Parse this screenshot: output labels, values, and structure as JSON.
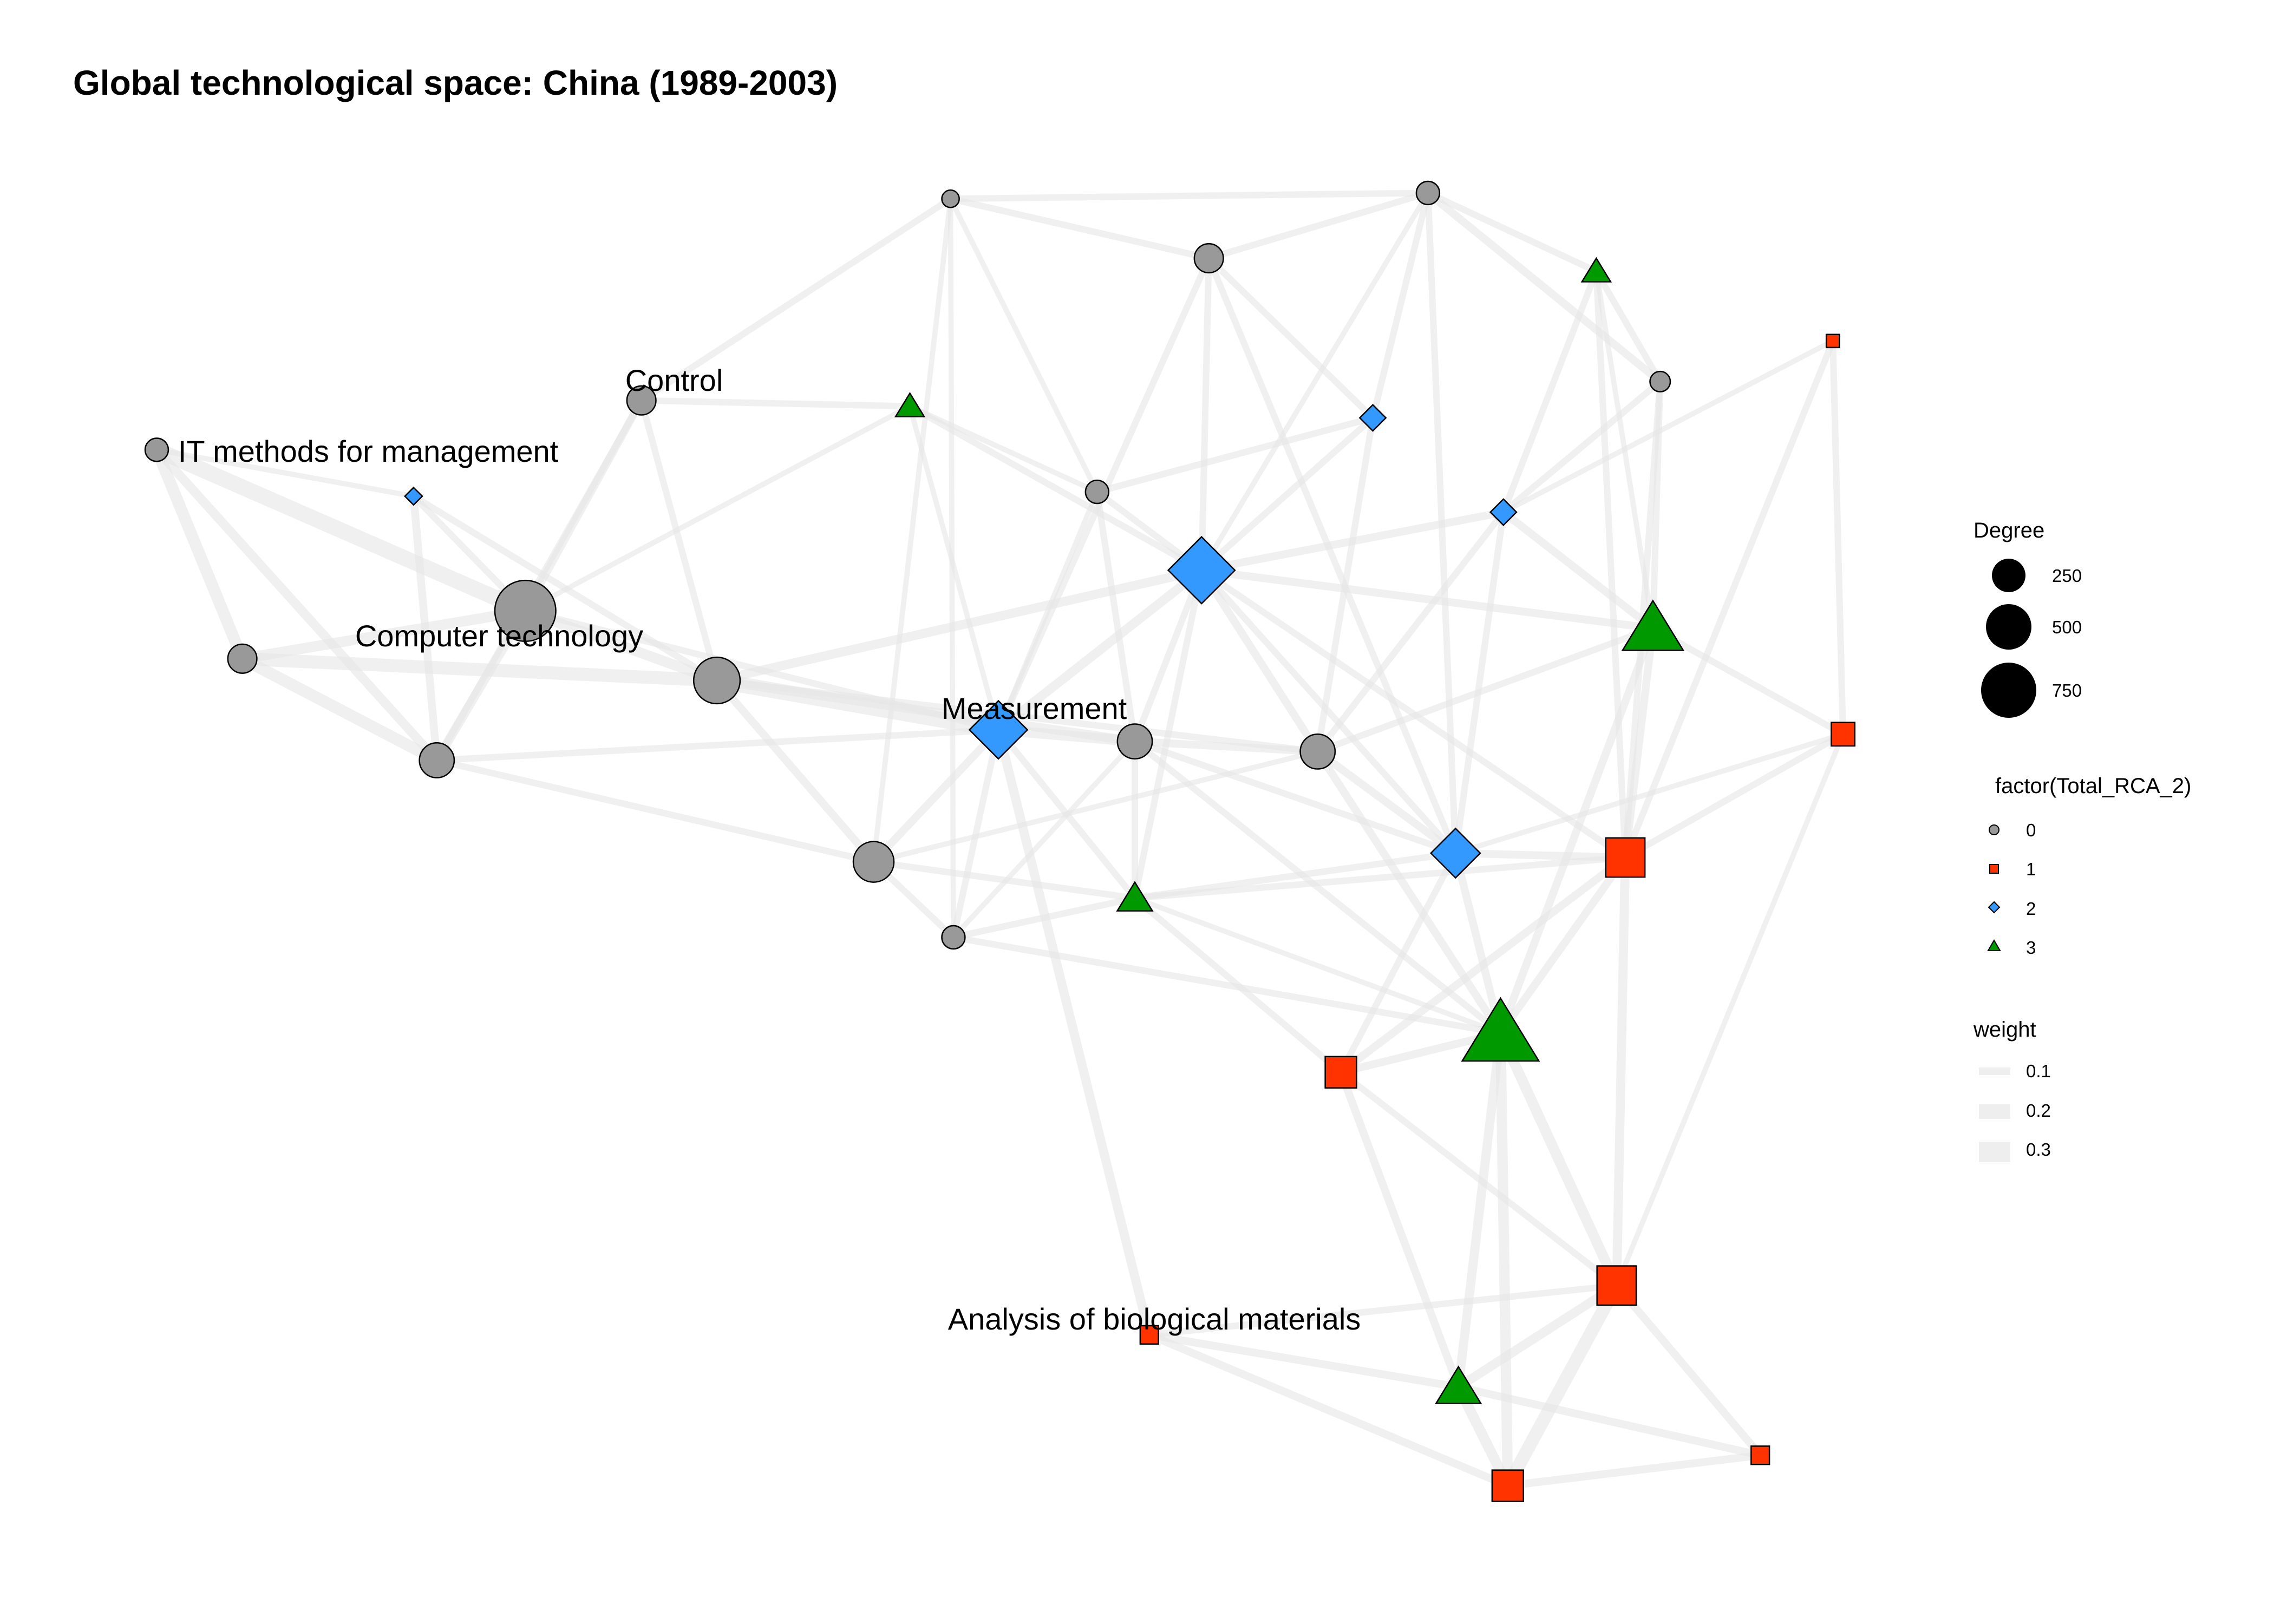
{
  "title": "Global technological space: China (1989-2003)",
  "colors": {
    "0": "#999999",
    "1": "#ff3300",
    "2": "#3399ff",
    "3": "#009900"
  },
  "shapes": {
    "0": "circle",
    "1": "square",
    "2": "diamond",
    "3": "triangle"
  },
  "labels": {
    "control": "Control",
    "it_methods": "IT methods for management",
    "computer_tech": "Computer technology",
    "measurement": "Measurement",
    "analysis_bio": "Analysis of biological materials"
  },
  "legend": {
    "degree": {
      "title": "Degree",
      "values": [
        "250",
        "500",
        "750"
      ]
    },
    "factor": {
      "title": "factor(Total_RCA_2)",
      "values": [
        "0",
        "1",
        "2",
        "3"
      ]
    },
    "weight": {
      "title": "weight",
      "values": [
        "0.1",
        "0.2",
        "0.3"
      ]
    }
  }
}
